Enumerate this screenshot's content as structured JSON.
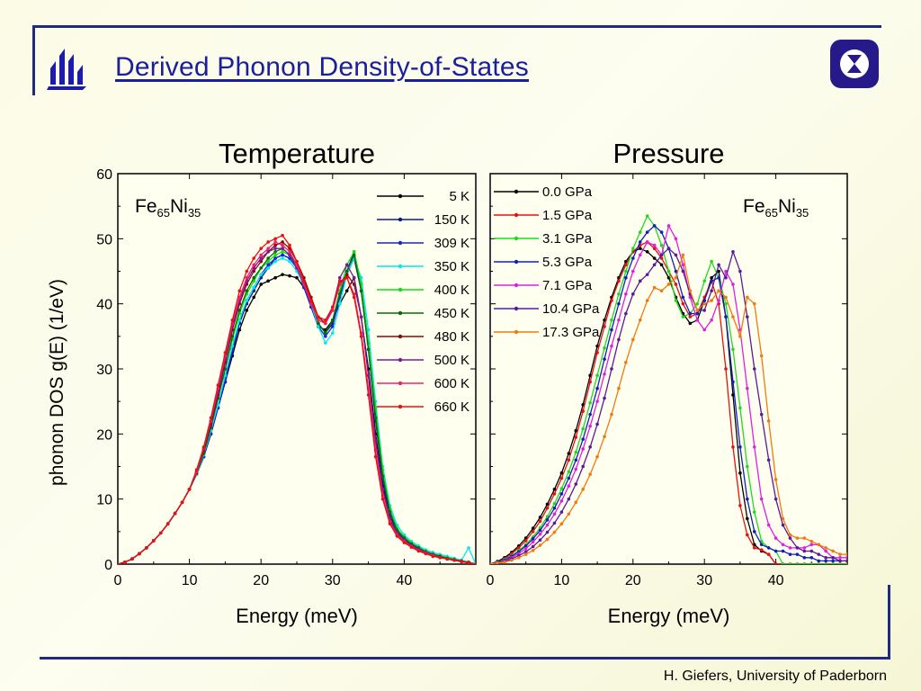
{
  "slide": {
    "title": "Derived Phonon Density-of-States",
    "footer": "H. Giefers, University of Paderborn",
    "accent_color": "#202a80",
    "logos": [
      "university-logo",
      "institute-logo"
    ]
  },
  "chart_data": [
    {
      "type": "line",
      "title": "Temperature",
      "xlabel": "Energy (meV)",
      "ylabel": "phonon DOS   g(E)  (1/eV)",
      "xlim": [
        0,
        50
      ],
      "ylim": [
        0,
        60
      ],
      "xticks": [
        0,
        10,
        20,
        30,
        40
      ],
      "yticks": [
        0,
        10,
        20,
        30,
        40,
        50,
        60
      ],
      "annotation": {
        "base1": "Fe",
        "sub1": "65",
        "base2": "Ni",
        "sub2": "35"
      },
      "legend_position": "top-right",
      "x": [
        0,
        1,
        2,
        3,
        4,
        5,
        6,
        7,
        8,
        9,
        10,
        11,
        12,
        13,
        14,
        15,
        16,
        17,
        18,
        19,
        20,
        21,
        22,
        23,
        24,
        25,
        26,
        27,
        28,
        29,
        30,
        31,
        32,
        33,
        34,
        35,
        36,
        37,
        38,
        39,
        40,
        41,
        42,
        43,
        44,
        45,
        46,
        47,
        48,
        49,
        50
      ],
      "series": [
        {
          "name": "5 K",
          "color": "#000000",
          "values": [
            0,
            0.3,
            0.8,
            1.6,
            2.5,
            3.6,
            4.8,
            6.2,
            7.8,
            9.5,
            11.5,
            13.8,
            16.5,
            20,
            24,
            28,
            32,
            36,
            39,
            41,
            43,
            43.5,
            44,
            44.5,
            44.3,
            44,
            42.5,
            39.5,
            36.5,
            36,
            37.5,
            40,
            42,
            44,
            38,
            30,
            20,
            12,
            7,
            4.5,
            3.5,
            2.8,
            2.2,
            1.8,
            1.4,
            1.1,
            0.8,
            0.6,
            0.4,
            0.2,
            0
          ]
        },
        {
          "name": "150 K",
          "color": "#0a1a8c",
          "values": [
            0,
            0.3,
            0.8,
            1.6,
            2.5,
            3.6,
            4.8,
            6.2,
            7.8,
            9.5,
            11.5,
            13.8,
            16.5,
            20,
            24,
            28,
            32.5,
            37,
            40,
            42,
            44,
            45.5,
            47,
            47.5,
            47,
            45.5,
            43,
            40,
            37,
            35.5,
            37,
            41,
            44.5,
            47,
            42,
            33,
            22,
            13,
            7.5,
            5,
            3.8,
            3,
            2.4,
            1.9,
            1.5,
            1.2,
            0.9,
            0.6,
            0.4,
            0.2,
            0
          ]
        },
        {
          "name": "309 K",
          "color": "#1a22d8",
          "values": [
            0,
            0.3,
            0.8,
            1.6,
            2.5,
            3.6,
            4.8,
            6.2,
            7.8,
            9.5,
            11.5,
            13.8,
            16.5,
            20,
            24,
            28.5,
            33,
            37.5,
            40.5,
            42.5,
            44.5,
            46,
            47,
            47.5,
            47,
            45.5,
            42.5,
            39.5,
            36.5,
            35,
            36.5,
            41,
            45,
            48,
            43,
            34,
            23,
            14,
            8,
            5.2,
            4,
            3.2,
            2.6,
            2,
            1.6,
            1.3,
            1,
            0.7,
            0.5,
            0.3,
            0
          ]
        },
        {
          "name": "350 K",
          "color": "#00e8f0",
          "values": [
            0,
            0.3,
            0.8,
            1.6,
            2.5,
            3.6,
            4.8,
            6.2,
            7.8,
            9.5,
            11.5,
            13.8,
            16.8,
            20.5,
            24.5,
            29,
            33.5,
            37.5,
            40.5,
            42.5,
            44.5,
            45.5,
            46.5,
            47,
            46.5,
            45,
            43,
            40,
            36.5,
            34,
            35.5,
            40,
            44.5,
            47,
            44,
            36,
            25,
            15,
            9,
            6,
            4.5,
            3.5,
            2.8,
            2.2,
            1.8,
            1.5,
            1.2,
            0.9,
            0.6,
            2.5,
            0
          ]
        },
        {
          "name": "400 K",
          "color": "#10e010",
          "values": [
            0,
            0.3,
            0.8,
            1.6,
            2.5,
            3.6,
            4.8,
            6.2,
            7.8,
            9.5,
            11.5,
            14,
            17,
            21,
            25.5,
            30,
            34.5,
            38.5,
            41.5,
            43.5,
            45.5,
            46.5,
            47.5,
            48,
            47.5,
            46,
            43.5,
            40.5,
            37,
            35.5,
            37.5,
            42,
            46,
            48,
            43,
            34,
            24,
            14.5,
            8.5,
            5.5,
            4.2,
            3.3,
            2.6,
            2,
            1.6,
            1.3,
            1,
            0.7,
            0.5,
            0.3,
            0
          ]
        },
        {
          "name": "450 K",
          "color": "#0a6a0a",
          "values": [
            0,
            0.3,
            0.8,
            1.6,
            2.5,
            3.6,
            4.8,
            6.2,
            7.8,
            9.5,
            11.5,
            14,
            17,
            21,
            25.5,
            30,
            35,
            39,
            42,
            44,
            45.5,
            47,
            48,
            48.5,
            47.5,
            46,
            43.5,
            40.5,
            37,
            35.5,
            37.5,
            41.5,
            45,
            47.5,
            42,
            33,
            22.5,
            13.5,
            8,
            5.2,
            4,
            3.1,
            2.5,
            1.9,
            1.5,
            1.2,
            0.9,
            0.7,
            0.5,
            0.3,
            0
          ]
        },
        {
          "name": "480 K",
          "color": "#8a0a0a",
          "values": [
            0,
            0.3,
            0.8,
            1.6,
            2.5,
            3.6,
            4.8,
            6.2,
            7.8,
            9.5,
            11.5,
            14,
            17.5,
            21.5,
            26,
            31,
            36,
            40,
            43,
            45,
            46.5,
            48,
            49,
            49.5,
            48.5,
            46.5,
            44,
            41,
            38,
            37,
            39,
            43,
            44.5,
            43,
            38,
            29,
            19,
            11.5,
            7,
            4.8,
            3.7,
            2.9,
            2.3,
            1.8,
            1.4,
            1.1,
            0.8,
            0.6,
            0.4,
            0.2,
            0
          ]
        },
        {
          "name": "500 K",
          "color": "#7a1a9a",
          "values": [
            0,
            0.3,
            0.8,
            1.6,
            2.5,
            3.6,
            4.8,
            6.2,
            7.8,
            9.5,
            11.5,
            14.2,
            17.8,
            22,
            26.5,
            31.5,
            36.5,
            40.5,
            43.5,
            45.5,
            47,
            48,
            48.5,
            48.5,
            47.5,
            45.5,
            43,
            40,
            37.5,
            37,
            39.5,
            44,
            46,
            44,
            38,
            29,
            19,
            11.5,
            7,
            4.8,
            3.7,
            2.9,
            2.3,
            1.8,
            1.4,
            1.1,
            0.8,
            0.6,
            0.4,
            0.2,
            0
          ]
        },
        {
          "name": "600 K",
          "color": "#f0206a",
          "values": [
            0,
            0.3,
            0.8,
            1.6,
            2.5,
            3.6,
            4.8,
            6.2,
            7.8,
            9.5,
            11.5,
            14.2,
            17.8,
            22,
            27,
            32,
            37,
            41,
            44,
            46,
            47.5,
            48.5,
            49.5,
            49,
            48,
            46,
            43,
            40,
            37.5,
            37,
            39,
            43,
            44,
            41.5,
            35.5,
            27,
            17.5,
            10.5,
            6.5,
            4.5,
            3.5,
            2.7,
            2.1,
            1.7,
            1.3,
            1,
            0.8,
            0.6,
            0.4,
            0.2,
            0
          ]
        },
        {
          "name": "660 K",
          "color": "#e81010",
          "values": [
            0,
            0.3,
            0.8,
            1.6,
            2.5,
            3.6,
            4.8,
            6.2,
            7.8,
            9.5,
            11.5,
            14.5,
            18,
            22.5,
            27.5,
            32.5,
            37.5,
            42,
            45,
            47,
            48.5,
            49.5,
            50,
            50.5,
            49,
            46.5,
            43.5,
            40.5,
            38,
            37.5,
            39.5,
            43.5,
            44,
            41,
            35,
            26,
            16.5,
            10,
            6.2,
            4.3,
            3.3,
            2.6,
            2,
            1.6,
            1.2,
            1,
            0.8,
            0.6,
            0.4,
            0.2,
            0
          ]
        }
      ]
    },
    {
      "type": "line",
      "title": "Pressure",
      "xlabel": "Energy (meV)",
      "ylabel": "",
      "xlim": [
        0,
        50
      ],
      "ylim": [
        0,
        60
      ],
      "xticks": [
        0,
        10,
        20,
        30,
        40
      ],
      "yticks": [
        0,
        10,
        20,
        30,
        40,
        50,
        60
      ],
      "annotation": {
        "base1": "Fe",
        "sub1": "65",
        "base2": "Ni",
        "sub2": "35"
      },
      "legend_position": "top-left",
      "x": [
        0,
        1,
        2,
        3,
        4,
        5,
        6,
        7,
        8,
        9,
        10,
        11,
        12,
        13,
        14,
        15,
        16,
        17,
        18,
        19,
        20,
        21,
        22,
        23,
        24,
        25,
        26,
        27,
        28,
        29,
        30,
        31,
        32,
        33,
        34,
        35,
        36,
        37,
        38,
        39,
        40,
        41,
        42,
        43,
        44,
        45,
        46,
        47,
        48,
        49,
        50
      ],
      "series": [
        {
          "name": "0.0 GPa",
          "color": "#000000",
          "values": [
            0,
            0.4,
            1,
            1.8,
            2.8,
            4,
            5.5,
            7.2,
            9.2,
            11.5,
            14,
            17,
            20.5,
            24.5,
            29,
            33.5,
            37.5,
            41,
            44,
            46.5,
            48,
            48.5,
            48,
            47,
            46,
            44,
            41,
            38.5,
            37,
            37.5,
            40.5,
            44,
            45,
            38,
            26,
            14,
            7,
            3,
            2,
            1.5,
            0,
            0,
            0,
            0,
            0,
            0,
            0,
            0,
            0,
            0,
            0
          ]
        },
        {
          "name": "1.5 GPa",
          "color": "#e81010",
          "values": [
            0,
            0.3,
            0.8,
            1.6,
            2.5,
            3.6,
            5,
            6.6,
            8.6,
            10.8,
            13.2,
            16,
            19.5,
            23.5,
            28,
            32.5,
            36.5,
            40.5,
            43.5,
            46,
            48,
            49,
            49.5,
            48.5,
            47,
            45,
            43,
            40,
            38,
            38.5,
            41,
            43.5,
            40,
            30,
            18,
            9,
            4.5,
            2.5,
            2.2,
            1.5,
            0,
            0,
            0,
            0,
            0,
            0,
            0,
            0,
            0,
            0,
            0
          ]
        },
        {
          "name": "3.1 GPa",
          "color": "#22d822",
          "values": [
            0,
            0.3,
            0.7,
            1.3,
            2.1,
            3,
            4.2,
            5.6,
            7.3,
            9.3,
            11.6,
            14.2,
            17.2,
            20.8,
            24.8,
            29,
            33.2,
            37.5,
            41.5,
            45,
            48.5,
            51,
            53.5,
            52,
            49,
            45,
            40.5,
            38,
            38.5,
            40,
            43.5,
            46.5,
            44,
            40,
            33,
            24,
            15,
            8,
            3.5,
            2.5,
            2,
            0,
            0,
            0,
            0,
            0,
            0,
            0,
            0,
            0,
            0
          ]
        },
        {
          "name": "5.3 GPa",
          "color": "#1020b8",
          "values": [
            0,
            0.3,
            0.6,
            1.2,
            1.9,
            2.8,
            3.9,
            5.2,
            6.8,
            8.6,
            10.8,
            13.2,
            16,
            19.2,
            23,
            27,
            31.5,
            36,
            40,
            44,
            47,
            49.5,
            51,
            52,
            51,
            48.5,
            45,
            41,
            38.5,
            38.5,
            40.5,
            43.5,
            44,
            38,
            28,
            18,
            10,
            5,
            3,
            2.5,
            2,
            2,
            1.5,
            1.5,
            1,
            1,
            0.5,
            0.5,
            0.5,
            0.5,
            0.5
          ]
        },
        {
          "name": "7.1 GPa",
          "color": "#e020e0",
          "values": [
            0,
            0.2,
            0.5,
            1,
            1.6,
            2.4,
            3.4,
            4.6,
            6,
            7.7,
            9.7,
            12,
            14.6,
            17.7,
            21.2,
            25,
            29.2,
            33.5,
            37.5,
            41.5,
            45,
            47.5,
            49.5,
            49,
            47.5,
            52,
            50,
            46,
            41,
            37.5,
            36,
            37.5,
            40.5,
            45,
            43,
            36,
            27,
            18,
            10,
            6,
            4,
            3,
            2.5,
            2.5,
            2.5,
            3,
            3,
            2,
            1,
            1,
            1
          ]
        },
        {
          "name": "10.4 GPa",
          "color": "#5a1a9a",
          "values": [
            0,
            0.2,
            0.4,
            0.8,
            1.3,
            1.9,
            2.7,
            3.7,
            4.9,
            6.3,
            8,
            10,
            12.3,
            15,
            18,
            21.5,
            25.5,
            30,
            34.5,
            38.5,
            41.5,
            43.5,
            44.5,
            46,
            47.5,
            48.5,
            47.5,
            45,
            41.5,
            39,
            39,
            42,
            46,
            44,
            48,
            45,
            38,
            30,
            23,
            16,
            10,
            6,
            4,
            2.5,
            2,
            2,
            1.5,
            1,
            1,
            0.5,
            0.5
          ]
        },
        {
          "name": "17.3 GPa",
          "color": "#f07a10",
          "values": [
            0,
            0.2,
            0.3,
            0.6,
            1,
            1.5,
            2.1,
            2.9,
            3.8,
            4.9,
            6.2,
            7.7,
            9.5,
            11.5,
            13.8,
            16.5,
            19.6,
            23,
            27,
            31,
            34.5,
            37.5,
            40.5,
            42.5,
            42,
            43,
            44,
            47.5,
            42,
            39,
            40,
            40.5,
            42,
            41,
            38,
            35,
            41,
            40,
            32,
            22,
            13,
            7,
            4.5,
            4,
            4,
            3.5,
            3,
            2.5,
            2,
            1.5,
            1.5
          ]
        }
      ]
    }
  ]
}
